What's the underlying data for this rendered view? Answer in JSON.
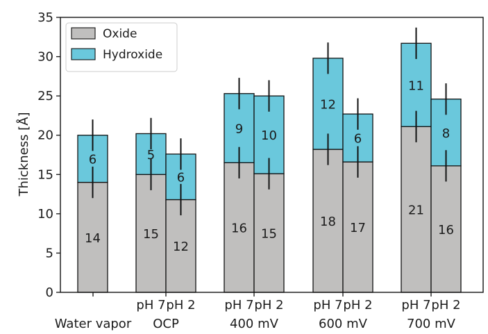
{
  "chart_data": {
    "type": "bar",
    "stacked": true,
    "ylabel": "Thickness [Å]",
    "ylim": [
      0,
      35
    ],
    "yticks": [
      0,
      5,
      10,
      15,
      20,
      25,
      30,
      35
    ],
    "groups": [
      {
        "label": "Water vapor",
        "bars": [
          {
            "sub": "",
            "oxide": 14,
            "hydroxide": 6,
            "oxide_label": "14",
            "hydroxide_label": "6",
            "oxide_err": 2.0,
            "total_err": 2.0
          }
        ]
      },
      {
        "label": "OCP",
        "bars": [
          {
            "sub": "pH 7",
            "oxide": 15,
            "hydroxide": 5.2,
            "oxide_label": "15",
            "hydroxide_label": "5",
            "oxide_err": 2.0,
            "total_err": 2.0
          },
          {
            "sub": "pH 2",
            "oxide": 11.8,
            "hydroxide": 5.8,
            "oxide_label": "12",
            "hydroxide_label": "6",
            "oxide_err": 2.0,
            "total_err": 2.0
          }
        ]
      },
      {
        "label": "400 mV",
        "bars": [
          {
            "sub": "pH 7",
            "oxide": 16.5,
            "hydroxide": 8.8,
            "oxide_label": "16",
            "hydroxide_label": "9",
            "oxide_err": 2.0,
            "total_err": 2.0
          },
          {
            "sub": "pH 2",
            "oxide": 15.1,
            "hydroxide": 9.9,
            "oxide_label": "15",
            "hydroxide_label": "10",
            "oxide_err": 2.0,
            "total_err": 2.0
          }
        ]
      },
      {
        "label": "600 mV",
        "bars": [
          {
            "sub": "pH 7",
            "oxide": 18.2,
            "hydroxide": 11.6,
            "oxide_label": "18",
            "hydroxide_label": "12",
            "oxide_err": 2.0,
            "total_err": 2.0
          },
          {
            "sub": "pH 2",
            "oxide": 16.6,
            "hydroxide": 6.1,
            "oxide_label": "17",
            "hydroxide_label": "6",
            "oxide_err": 2.0,
            "total_err": 2.0
          }
        ]
      },
      {
        "label": "700 mV",
        "bars": [
          {
            "sub": "pH 7",
            "oxide": 21.1,
            "hydroxide": 10.6,
            "oxide_label": "21",
            "hydroxide_label": "11",
            "oxide_err": 2.0,
            "total_err": 2.0
          },
          {
            "sub": "pH 2",
            "oxide": 16.1,
            "hydroxide": 8.5,
            "oxide_label": "16",
            "hydroxide_label": "8",
            "oxide_err": 2.0,
            "total_err": 2.0
          }
        ]
      }
    ],
    "legend": {
      "placement": "top-left",
      "entries": [
        {
          "name": "Oxide",
          "color": "#c0bfbe"
        },
        {
          "name": "Hydroxide",
          "color": "#6ac8dc"
        }
      ]
    }
  }
}
